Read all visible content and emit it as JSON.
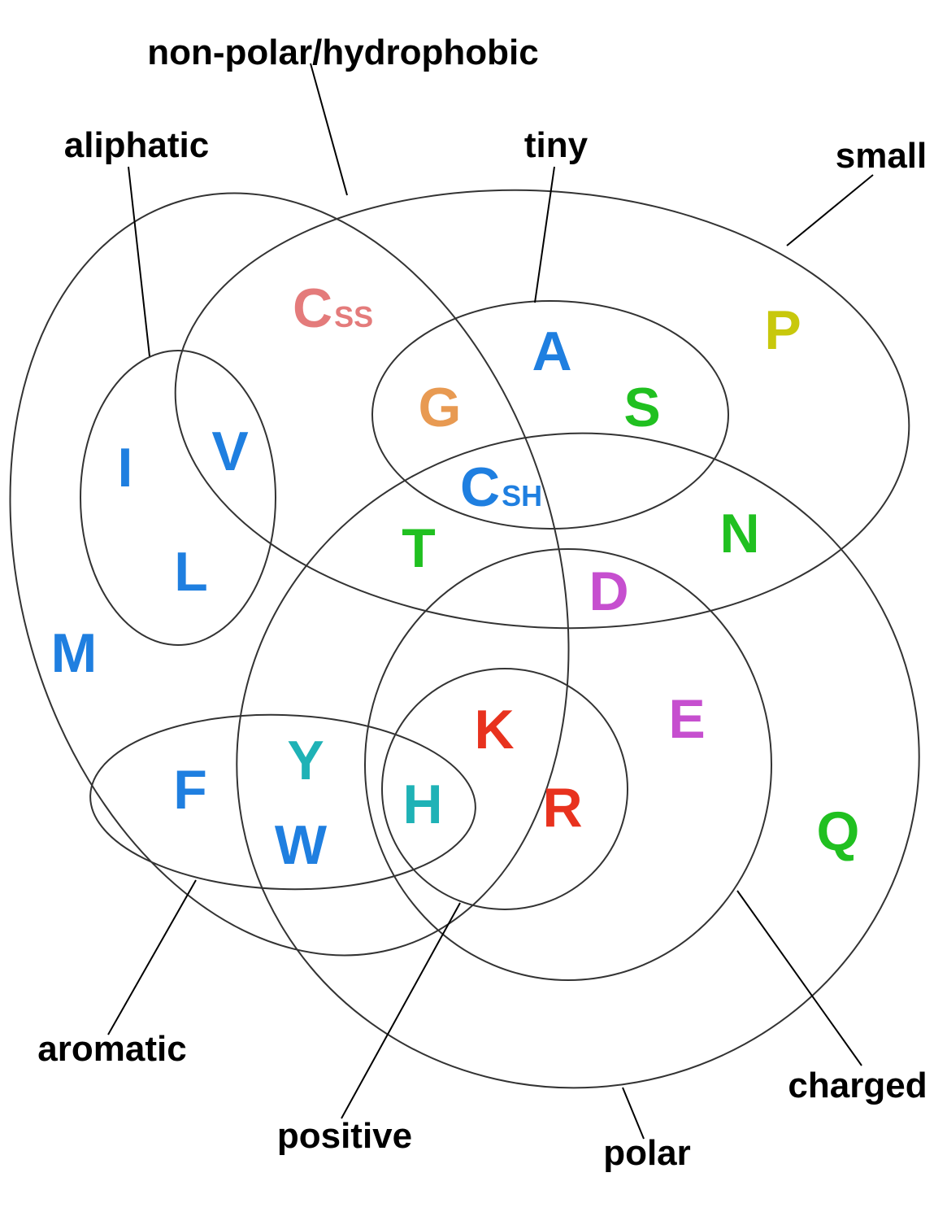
{
  "colors": {
    "hydrophobic": "#1f7fe0",
    "polar_neutral": "#20c020",
    "cystine": "#e47b7b",
    "glycine": "#e89a52",
    "proline": "#c8c80c",
    "acidic": "#c64fcf",
    "basic": "#e8321e",
    "aromatic_polar": "#1fb2b6"
  },
  "set_labels": {
    "nonpolar": "non-polar/hydrophobic",
    "aliphatic": "aliphatic",
    "tiny": "tiny",
    "small": "small",
    "aromatic": "aromatic",
    "positive": "positive",
    "polar": "polar",
    "charged": "charged"
  },
  "amino_acids": {
    "css_letter": "C",
    "css_sub": "SS",
    "csh_letter": "C",
    "csh_sub": "SH",
    "A": "A",
    "G": "G",
    "S": "S",
    "P": "P",
    "I": "I",
    "V": "V",
    "L": "L",
    "M": "M",
    "T": "T",
    "N": "N",
    "D": "D",
    "E": "E",
    "K": "K",
    "R": "R",
    "Q": "Q",
    "H": "H",
    "F": "F",
    "Y": "Y",
    "W": "W"
  }
}
